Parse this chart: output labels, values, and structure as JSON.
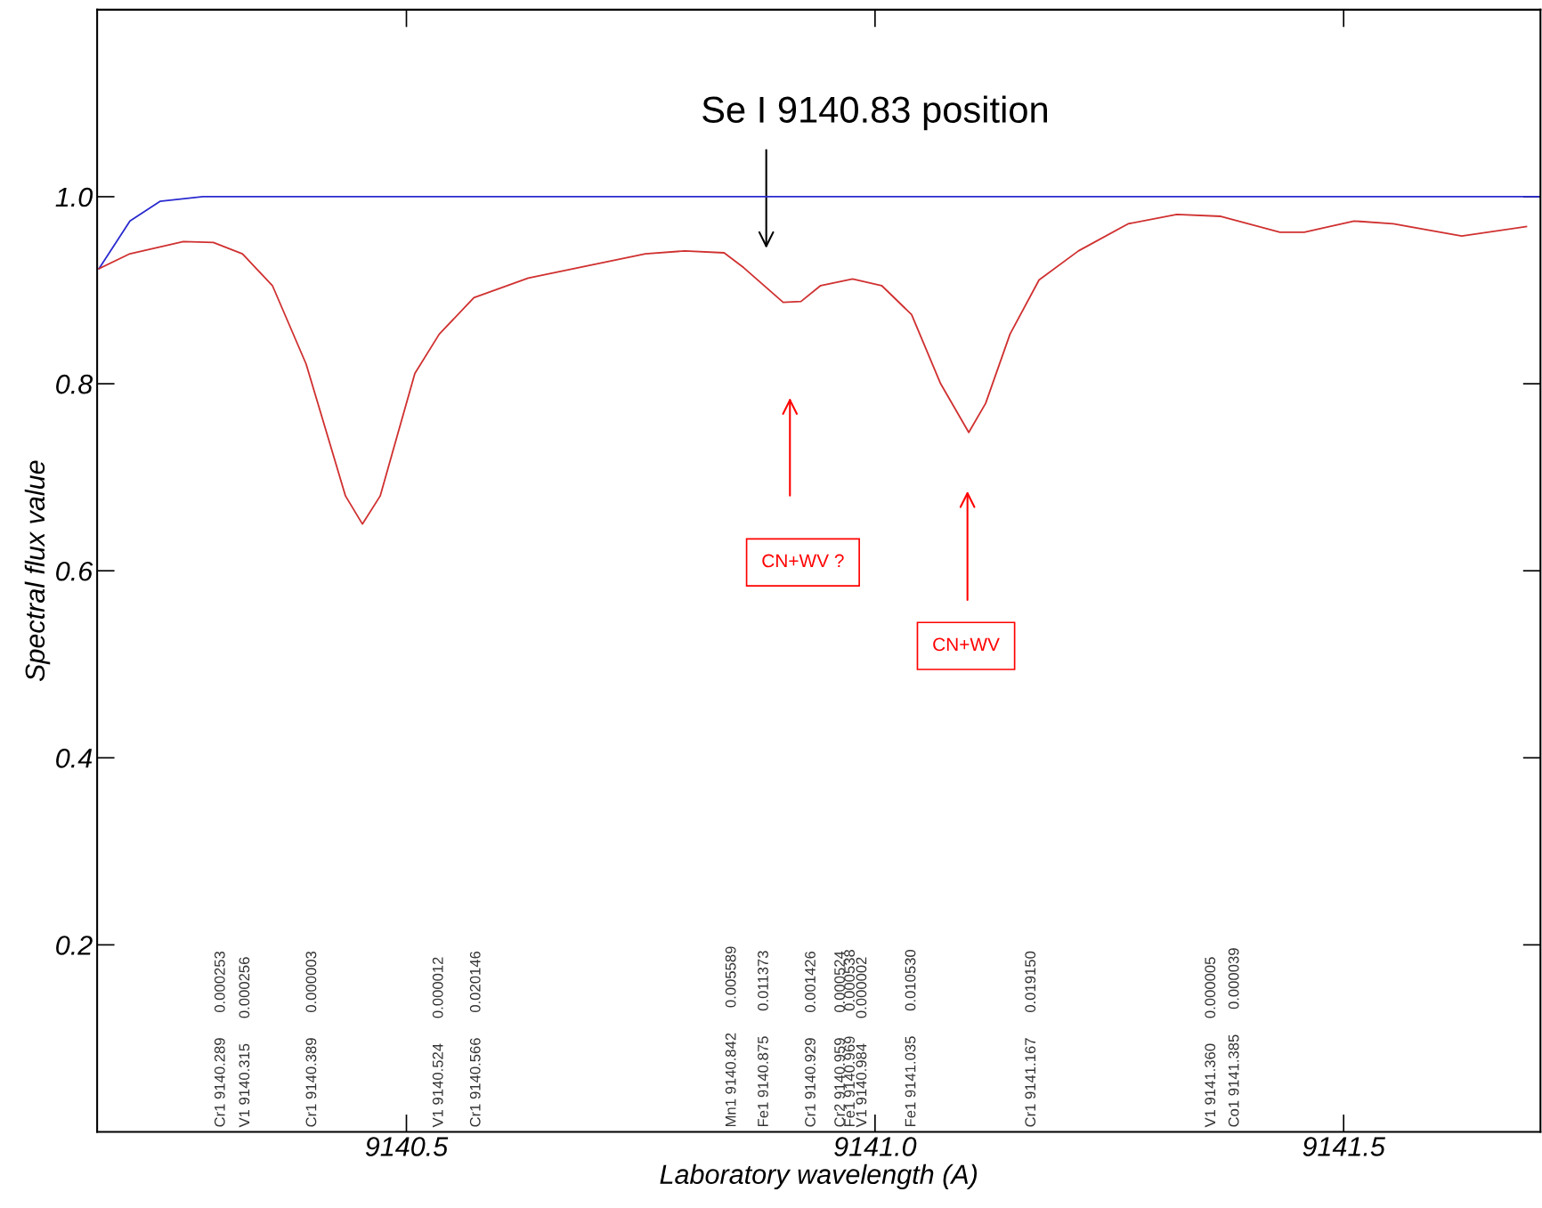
{
  "chart_data": {
    "type": "line",
    "xlabel": "Laboratory wavelength (A)",
    "ylabel": "Spectral flux value",
    "xlim": [
      9140.17,
      9141.71
    ],
    "ylim": [
      0,
      1.2
    ],
    "xticks": [
      9140.5,
      {
        "value": 9141.0,
        "label": "9141.0"
      },
      9141.5
    ],
    "yticks": [
      0.2,
      0.4,
      0.6,
      0.8,
      {
        "value": 1.0,
        "label": "1.0"
      }
    ],
    "grid": false,
    "legend": false,
    "series": [
      {
        "color": "#2a2ad0",
        "x": [
          9140.172,
          9140.205,
          9140.237,
          9140.283,
          9140.6,
          9141.0,
          9141.4,
          9141.708
        ],
        "values": [
          0.923,
          0.974,
          0.995,
          1.0,
          1.0,
          1.0,
          1.0,
          1.0
        ]
      },
      {
        "color": "#d03030",
        "x": [
          9140.172,
          9140.205,
          9140.262,
          9140.294,
          9140.325,
          9140.357,
          9140.393,
          9140.435,
          9140.453,
          9140.472,
          9140.509,
          9140.535,
          9140.572,
          9140.63,
          9140.693,
          9140.755,
          9140.797,
          9140.839,
          9140.86,
          9140.902,
          9140.921,
          9140.942,
          9140.976,
          9141.007,
          9141.039,
          9141.07,
          9141.1,
          9141.118,
          9141.144,
          9141.175,
          9141.217,
          9141.27,
          9141.322,
          9141.369,
          9141.432,
          9141.458,
          9141.511,
          9141.553,
          9141.626,
          9141.695
        ],
        "values": [
          0.923,
          0.939,
          0.952,
          0.951,
          0.939,
          0.905,
          0.821,
          0.68,
          0.65,
          0.68,
          0.811,
          0.853,
          0.892,
          0.913,
          0.926,
          0.939,
          0.942,
          0.94,
          0.924,
          0.887,
          0.888,
          0.905,
          0.912,
          0.905,
          0.874,
          0.8,
          0.748,
          0.779,
          0.853,
          0.911,
          0.942,
          0.971,
          0.981,
          0.979,
          0.962,
          0.962,
          0.974,
          0.971,
          0.958,
          0.968
        ]
      }
    ],
    "annotations": [
      "Se I 9140.83 position",
      "CN+WV ?",
      "CN+WV",
      "Cr1 9140.289      0.000253",
      "V1 9140.315      0.000256",
      "Cr1 9140.389      0.000003",
      "V1 9140.524      0.000012",
      "Cr1 9140.566      0.020146",
      "Mn1 9140.842      0.005589",
      "Fe1 9140.875      0.011373",
      "Cr1 9140.929      0.001426",
      "Cr2 9140.959      0.000524",
      "Fe1 9140.969      0.000538",
      "V1 9140.984      0.000002",
      "Fe1 9141.035      0.010530",
      "Cr1 9141.167      0.019150",
      "V1 9141.360      0.000005",
      "Co1 9141.385      0.000039"
    ]
  }
}
